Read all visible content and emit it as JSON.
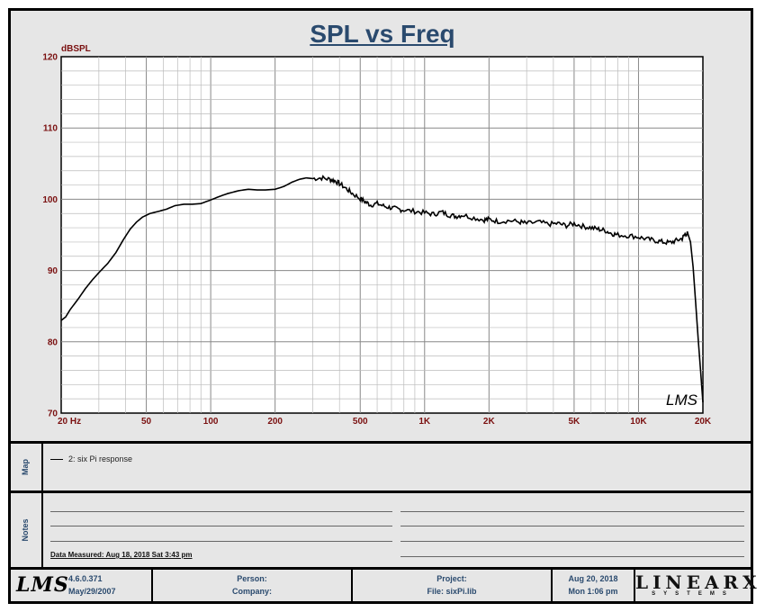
{
  "page": {
    "title": "SPL vs Freq"
  },
  "chart_data": {
    "type": "line",
    "title": "SPL vs Freq",
    "ylabel": "dBSPL",
    "xlabel": "",
    "x_scale": "log",
    "xlim": [
      20,
      20000
    ],
    "ylim": [
      70,
      120
    ],
    "grid": true,
    "y_ticks": [
      "70",
      "80",
      "90",
      "100",
      "110",
      "120"
    ],
    "x_ticks": [
      {
        "value": 20,
        "label": "20  Hz"
      },
      {
        "value": 50,
        "label": "50"
      },
      {
        "value": 100,
        "label": "100"
      },
      {
        "value": 200,
        "label": "200"
      },
      {
        "value": 500,
        "label": "500"
      },
      {
        "value": 1000,
        "label": "1K"
      },
      {
        "value": 2000,
        "label": "2K"
      },
      {
        "value": 5000,
        "label": "5K"
      },
      {
        "value": 10000,
        "label": "10K"
      },
      {
        "value": 20000,
        "label": "20K"
      }
    ],
    "series": [
      {
        "name": "2: six Pi response",
        "color": "#000000",
        "points": [
          [
            20,
            83.0
          ],
          [
            21,
            83.5
          ],
          [
            22,
            84.5
          ],
          [
            24,
            86.0
          ],
          [
            26,
            87.5
          ],
          [
            28,
            88.7
          ],
          [
            30,
            89.7
          ],
          [
            33,
            91.0
          ],
          [
            36,
            92.5
          ],
          [
            39,
            94.3
          ],
          [
            42,
            95.8
          ],
          [
            45,
            96.8
          ],
          [
            48,
            97.5
          ],
          [
            52,
            98.0
          ],
          [
            57,
            98.3
          ],
          [
            62,
            98.6
          ],
          [
            68,
            99.1
          ],
          [
            75,
            99.3
          ],
          [
            82,
            99.3
          ],
          [
            90,
            99.4
          ],
          [
            100,
            99.9
          ],
          [
            110,
            100.4
          ],
          [
            120,
            100.8
          ],
          [
            135,
            101.2
          ],
          [
            150,
            101.4
          ],
          [
            165,
            101.3
          ],
          [
            180,
            101.3
          ],
          [
            200,
            101.4
          ],
          [
            220,
            101.8
          ],
          [
            240,
            102.4
          ],
          [
            260,
            102.8
          ],
          [
            280,
            103.0
          ],
          [
            300,
            102.9
          ],
          [
            330,
            103.0
          ],
          [
            360,
            102.8
          ],
          [
            380,
            102.6
          ],
          [
            400,
            102.2
          ],
          [
            430,
            101.5
          ],
          [
            460,
            100.8
          ],
          [
            500,
            100.1
          ],
          [
            530,
            99.6
          ],
          [
            560,
            99.2
          ],
          [
            600,
            99.4
          ],
          [
            650,
            99.0
          ],
          [
            700,
            98.8
          ],
          [
            750,
            98.6
          ],
          [
            800,
            98.5
          ],
          [
            900,
            98.3
          ],
          [
            1000,
            98.1
          ],
          [
            1100,
            97.9
          ],
          [
            1200,
            98.2
          ],
          [
            1300,
            97.8
          ],
          [
            1400,
            97.6
          ],
          [
            1500,
            97.8
          ],
          [
            1700,
            97.4
          ],
          [
            1900,
            97.1
          ],
          [
            2000,
            97.2
          ],
          [
            2200,
            96.9
          ],
          [
            2500,
            97.0
          ],
          [
            2800,
            96.8
          ],
          [
            3000,
            96.6
          ],
          [
            3400,
            96.8
          ],
          [
            3800,
            96.5
          ],
          [
            4200,
            96.6
          ],
          [
            4600,
            96.3
          ],
          [
            5000,
            96.6
          ],
          [
            5500,
            96.2
          ],
          [
            6000,
            96.0
          ],
          [
            6500,
            95.8
          ],
          [
            7000,
            95.6
          ],
          [
            7500,
            95.2
          ],
          [
            8000,
            95.0
          ],
          [
            9000,
            94.9
          ],
          [
            10000,
            94.7
          ],
          [
            11000,
            94.4
          ],
          [
            12000,
            94.2
          ],
          [
            13000,
            94.0
          ],
          [
            14000,
            93.9
          ],
          [
            15000,
            94.2
          ],
          [
            16000,
            94.5
          ],
          [
            16500,
            95.1
          ],
          [
            17000,
            95.2
          ],
          [
            17500,
            94.0
          ],
          [
            18000,
            90.5
          ],
          [
            18500,
            85.5
          ],
          [
            19000,
            80.5
          ],
          [
            19500,
            76.0
          ],
          [
            20000,
            71.5
          ]
        ]
      }
    ]
  },
  "watermark": "LMS",
  "map_panel": {
    "label": "Map",
    "legend_text": "2: six Pi response"
  },
  "notes_panel": {
    "label": "Notes",
    "data_measured": "Data Measured: Aug 18, 2018  Sat  3:43 pm"
  },
  "footer": {
    "logo": "LMS",
    "version": "4.6.0.371",
    "version_date": "May/29/2007",
    "person_label": "Person:",
    "company_label": "Company:",
    "project_label": "Project:",
    "file_label": "File: sixPi.lib",
    "date": "Aug 20, 2018",
    "time": "Mon  1:06 pm",
    "brand": "LINEARX",
    "brand_sub": "SYSTEMS"
  }
}
